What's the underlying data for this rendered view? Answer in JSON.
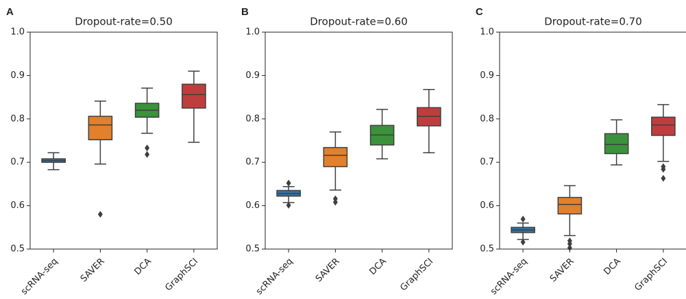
{
  "chart_data": [
    {
      "type": "box",
      "panel": "A",
      "title": "Dropout-rate=0.50",
      "categories": [
        "scRNA-seq",
        "SAVER",
        "DCA",
        "GraphSCI"
      ],
      "colors": [
        "#3274a1",
        "#e1812c",
        "#3a923a",
        "#c03d3e"
      ],
      "boxes": [
        {
          "whislo": 0.683,
          "q1": 0.7,
          "med": 0.704,
          "q3": 0.708,
          "whishi": 0.722,
          "fliers": []
        },
        {
          "whislo": 0.696,
          "q1": 0.752,
          "med": 0.786,
          "q3": 0.806,
          "whishi": 0.841,
          "fliers": [
            0.58
          ]
        },
        {
          "whislo": 0.767,
          "q1": 0.804,
          "med": 0.82,
          "q3": 0.836,
          "whishi": 0.871,
          "fliers": [
            0.733,
            0.718
          ]
        },
        {
          "whislo": 0.746,
          "q1": 0.825,
          "med": 0.856,
          "q3": 0.88,
          "whishi": 0.91,
          "fliers": []
        }
      ],
      "ylim": [
        0.5,
        1.0
      ],
      "yticks": [
        0.5,
        0.6,
        0.7,
        0.8,
        0.9,
        {
          "value": 1.0,
          "label": "1.0"
        }
      ]
    },
    {
      "type": "box",
      "panel": "B",
      "title": "Dropout-rate=0.60",
      "categories": [
        "scRNA-seq",
        "SAVER",
        "DCA",
        "GraphSCI"
      ],
      "colors": [
        "#3274a1",
        "#e1812c",
        "#3a923a",
        "#c03d3e"
      ],
      "boxes": [
        {
          "whislo": 0.607,
          "q1": 0.622,
          "med": 0.628,
          "q3": 0.635,
          "whishi": 0.644,
          "fliers": [
            0.652,
            0.601
          ]
        },
        {
          "whislo": 0.636,
          "q1": 0.69,
          "med": 0.716,
          "q3": 0.734,
          "whishi": 0.77,
          "fliers": [
            0.616,
            0.608
          ]
        },
        {
          "whislo": 0.708,
          "q1": 0.74,
          "med": 0.763,
          "q3": 0.785,
          "whishi": 0.822,
          "fliers": []
        },
        {
          "whislo": 0.722,
          "q1": 0.784,
          "med": 0.806,
          "q3": 0.826,
          "whishi": 0.868,
          "fliers": []
        }
      ],
      "ylim": [
        0.5,
        1.0
      ],
      "yticks": [
        0.5,
        0.6,
        0.7,
        0.8,
        0.9,
        {
          "value": 1.0,
          "label": "1.0"
        }
      ]
    },
    {
      "type": "box",
      "panel": "C",
      "title": "Dropout-rate=0.70",
      "categories": [
        "scRNA-seq",
        "SAVER",
        "DCA",
        "GraphSCI"
      ],
      "colors": [
        "#3274a1",
        "#e1812c",
        "#3a923a",
        "#c03d3e"
      ],
      "boxes": [
        {
          "whislo": 0.522,
          "q1": 0.538,
          "med": 0.544,
          "q3": 0.55,
          "whishi": 0.56,
          "fliers": [
            0.569,
            0.516
          ]
        },
        {
          "whislo": 0.531,
          "q1": 0.581,
          "med": 0.603,
          "q3": 0.619,
          "whishi": 0.646,
          "fliers": [
            0.519,
            0.512,
            0.503
          ]
        },
        {
          "whislo": 0.694,
          "q1": 0.72,
          "med": 0.741,
          "q3": 0.766,
          "whishi": 0.798,
          "fliers": []
        },
        {
          "whislo": 0.702,
          "q1": 0.762,
          "med": 0.786,
          "q3": 0.804,
          "whishi": 0.833,
          "fliers": [
            0.69,
            0.684,
            0.663
          ]
        }
      ],
      "ylim": [
        0.5,
        1.0
      ],
      "yticks": [
        0.5,
        0.6,
        0.7,
        0.8,
        0.9,
        {
          "value": 1.0,
          "label": "1.0"
        }
      ]
    }
  ]
}
